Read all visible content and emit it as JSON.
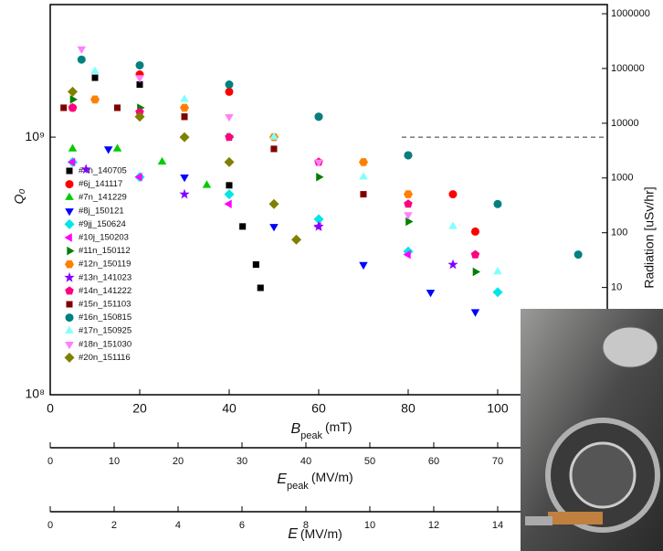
{
  "chart_data": {
    "type": "scatter",
    "ylabel": "Q₀",
    "xlabel": [
      "B",
      "peak",
      "(mT)"
    ],
    "y2label": "Radiation [uSv/hr]",
    "xlim": [
      0,
      124.5
    ],
    "xticks": [
      0,
      20,
      40,
      60,
      80,
      100
    ],
    "ylim": [
      100000000,
      3270000000
    ],
    "yticks": [
      {
        "value": 100000000,
        "label": "10⁸"
      },
      {
        "value": 1000000000,
        "label": "10⁹"
      }
    ],
    "y2lim": [
      0.11,
      1470000
    ],
    "y2ticks": [
      10,
      100,
      1000,
      10000,
      100000,
      1000000
    ],
    "log_scale": true,
    "reference_line": 1000000000,
    "x2": {
      "label": [
        "E",
        "peak",
        "(MV/m)"
      ],
      "lim": [
        0,
        87.15
      ],
      "ticks": [
        0,
        10,
        20,
        30,
        40,
        50,
        60,
        70
      ]
    },
    "x3": {
      "label": [
        "E",
        "(MV/m)"
      ],
      "lim": [
        0,
        17.43
      ],
      "ticks": [
        0,
        2,
        4,
        6,
        8,
        10,
        12,
        14
      ]
    },
    "series": [
      {
        "name": "#4n_140705",
        "color": "#000000",
        "marker": "square",
        "x": [
          10,
          20,
          30,
          40,
          43,
          46,
          47
        ],
        "values": [
          1700000000,
          1600000000,
          1200000000,
          650000000,
          450000000,
          320000000,
          260000000
        ]
      },
      {
        "name": "#6j_141117",
        "color": "#ff0000",
        "marker": "circle",
        "x": [
          5,
          20,
          40,
          60,
          80,
          90,
          95
        ],
        "values": [
          1300000000,
          1750000000,
          1500000000,
          1200000000,
          850000000,
          600000000,
          430000000
        ]
      },
      {
        "name": "#7n_141229",
        "color": "#00cc00",
        "marker": "triangle",
        "x": [
          5,
          15,
          25,
          35
        ],
        "values": [
          900000000,
          900000000,
          800000000,
          650000000
        ]
      },
      {
        "name": "#8j_150121",
        "color": "#0000ff",
        "marker": "triangle-down",
        "x": [
          13,
          30,
          50,
          70,
          85,
          95
        ],
        "values": [
          900000000,
          700000000,
          450000000,
          320000000,
          250000000,
          210000000
        ]
      },
      {
        "name": "#9jj_150624",
        "color": "#00e5e5",
        "marker": "diamond",
        "x": [
          5,
          20,
          40,
          60,
          80,
          100
        ],
        "values": [
          800000000,
          700000000,
          600000000,
          480000000,
          360000000,
          250000000
        ]
      },
      {
        "name": "#10j_150203",
        "color": "#ff00ff",
        "marker": "triangle-left",
        "x": [
          5,
          20,
          40,
          60,
          80
        ],
        "values": [
          800000000,
          700000000,
          550000000,
          450000000,
          350000000
        ]
      },
      {
        "name": "#11n_150112",
        "color": "#008000",
        "marker": "triangle-right",
        "x": [
          5,
          20,
          40,
          60,
          80,
          95
        ],
        "values": [
          1400000000,
          1300000000,
          1000000000,
          700000000,
          470000000,
          300000000
        ]
      },
      {
        "name": "#12n_150119",
        "color": "#ff8000",
        "marker": "hexagon",
        "x": [
          10,
          30,
          50,
          70,
          80
        ],
        "values": [
          1400000000,
          1300000000,
          1000000000,
          800000000,
          600000000
        ]
      },
      {
        "name": "#13n_141023",
        "color": "#8000ff",
        "marker": "star",
        "x": [
          8,
          30,
          60,
          90
        ],
        "values": [
          750000000,
          600000000,
          450000000,
          320000000
        ]
      },
      {
        "name": "#14n_141222",
        "color": "#ff0080",
        "marker": "pentagon",
        "x": [
          5,
          20,
          40,
          60,
          80,
          95
        ],
        "values": [
          1300000000,
          1250000000,
          1000000000,
          800000000,
          550000000,
          350000000
        ]
      },
      {
        "name": "#15n_151103",
        "color": "#800000",
        "marker": "square",
        "x": [
          3,
          15,
          30,
          50,
          70
        ],
        "values": [
          1300000000,
          1300000000,
          1200000000,
          900000000,
          600000000
        ]
      },
      {
        "name": "#16n_150815",
        "color": "#008080",
        "marker": "circle",
        "x": [
          7,
          20,
          40,
          60,
          80,
          100,
          118
        ],
        "values": [
          2000000000,
          1900000000,
          1600000000,
          1200000000,
          850000000,
          550000000,
          350000000
        ]
      },
      {
        "name": "#17n_150925",
        "color": "#80ffff",
        "marker": "triangle",
        "x": [
          10,
          30,
          50,
          70,
          90,
          100
        ],
        "values": [
          1800000000,
          1400000000,
          1000000000,
          700000000,
          450000000,
          300000000
        ]
      },
      {
        "name": "#18n_151030",
        "color": "#ff80ff",
        "marker": "triangle-down",
        "x": [
          7,
          20,
          40,
          60,
          80
        ],
        "values": [
          2200000000,
          1700000000,
          1200000000,
          800000000,
          500000000
        ]
      },
      {
        "name": "#20n_151116",
        "color": "#808000",
        "marker": "diamond",
        "x": [
          5,
          20,
          30,
          40,
          50,
          55
        ],
        "values": [
          1500000000,
          1200000000,
          1000000000,
          800000000,
          550000000,
          400000000
        ]
      }
    ]
  }
}
